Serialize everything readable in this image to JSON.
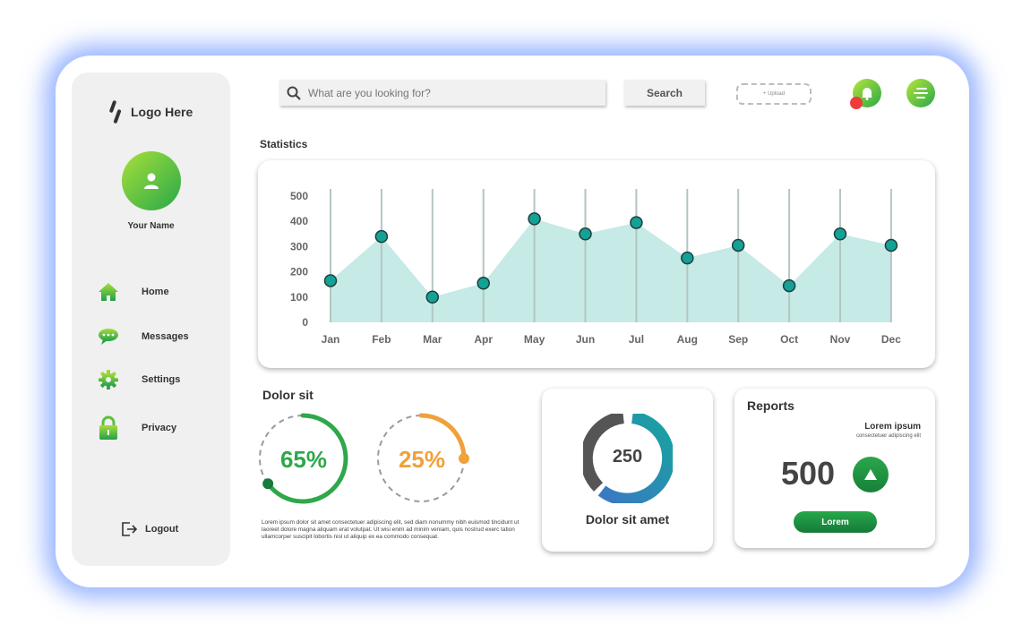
{
  "sidebar": {
    "logo_text": "Logo Here",
    "user_name": "Your Name",
    "nav": [
      {
        "label": "Home",
        "icon": "home-icon"
      },
      {
        "label": "Messages",
        "icon": "chat-icon"
      },
      {
        "label": "Settings",
        "icon": "gear-icon"
      },
      {
        "label": "Privacy",
        "icon": "lock-icon"
      }
    ],
    "logout_label": "Logout"
  },
  "header": {
    "search_placeholder": "What are you looking for?",
    "search_button": "Search",
    "upload_label": "+ Upload"
  },
  "statistics": {
    "title": "Statistics"
  },
  "chart_data": {
    "type": "area",
    "title": "",
    "categories": [
      "Jan",
      "Feb",
      "Mar",
      "Apr",
      "May",
      "Jun",
      "Jul",
      "Aug",
      "Sep",
      "Oct",
      "Nov",
      "Dec"
    ],
    "values": [
      165,
      340,
      100,
      155,
      410,
      350,
      395,
      255,
      305,
      145,
      350,
      305
    ],
    "y_ticks": [
      "500",
      "400",
      "300",
      "200",
      "100",
      "0"
    ],
    "ylim": [
      0,
      500
    ],
    "fill_color": "#c6eae6",
    "marker_color": "#14a196",
    "grid": "vertical"
  },
  "dolor": {
    "title": "Dolor sit",
    "ring1_label": "65%",
    "ring1_value": 0.65,
    "ring1_color": "#2fa74a",
    "ring2_label": "25%",
    "ring2_value": 0.25,
    "ring2_color": "#f0a13a",
    "text": "Lorem ipsum dolor sit amet consectetuer adipiscing elit, sed diam nonummy nibh euismod tincidunt ut laoreet dolore magna aliquam erat volutpat. Ut wisi enim ad minim veniam, quis nostrud exerc tation ullamcorper suscipit lobortis nisl ut aliquip ex ea commodo consequat."
  },
  "donut": {
    "value": "250",
    "caption": "Dolor sit amet"
  },
  "reports": {
    "title": "Reports",
    "subtitle": "Lorem ipsum",
    "subtext": "consectetuer adipiscing elit",
    "value": "500",
    "button": "Lorem"
  }
}
